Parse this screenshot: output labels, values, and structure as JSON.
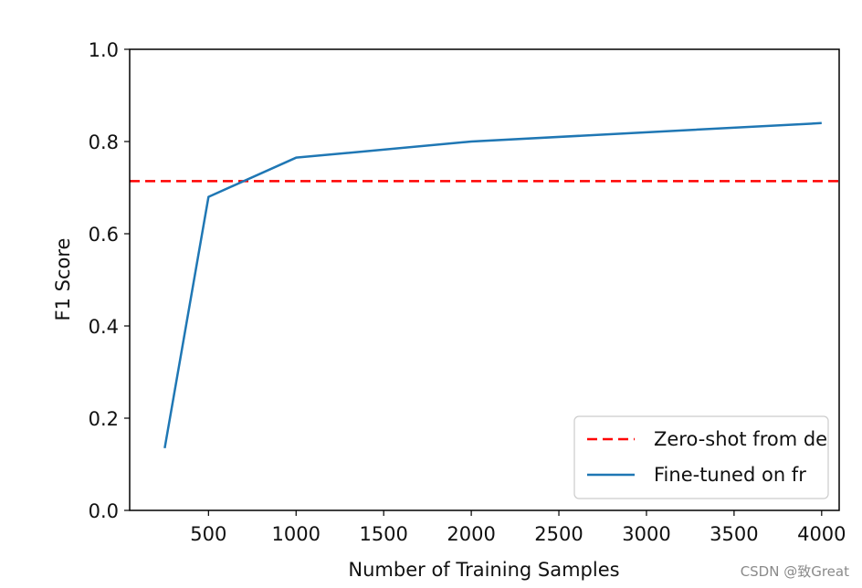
{
  "chart_data": {
    "type": "line",
    "title": "",
    "xlabel": "Number of Training Samples",
    "ylabel": "F1 Score",
    "xlim": [
      50,
      4100
    ],
    "ylim": [
      0.0,
      1.0
    ],
    "x_ticks": [
      500,
      1000,
      1500,
      2000,
      2500,
      3000,
      3500,
      4000
    ],
    "x_tick_labels": [
      "500",
      "1000",
      "1500",
      "2000",
      "2500",
      "3000",
      "3500",
      "4000"
    ],
    "y_ticks": [
      0.0,
      0.2,
      0.4,
      0.6,
      0.8,
      1.0
    ],
    "y_tick_labels": [
      "0.0",
      "0.2",
      "0.4",
      "0.6",
      "0.8",
      "1.0"
    ],
    "grid": false,
    "legend_position": "lower-right",
    "series": [
      {
        "name": "Zero-shot from de",
        "kind": "hline",
        "y": 0.714,
        "color": "#ff0000",
        "style": "dashed"
      },
      {
        "name": "Fine-tuned on fr",
        "kind": "line",
        "x": [
          250,
          500,
          1000,
          2000,
          4000
        ],
        "y": [
          0.135,
          0.68,
          0.765,
          0.8,
          0.84
        ],
        "color": "#1f77b4",
        "style": "solid"
      }
    ]
  },
  "watermark": "CSDN @致Great"
}
